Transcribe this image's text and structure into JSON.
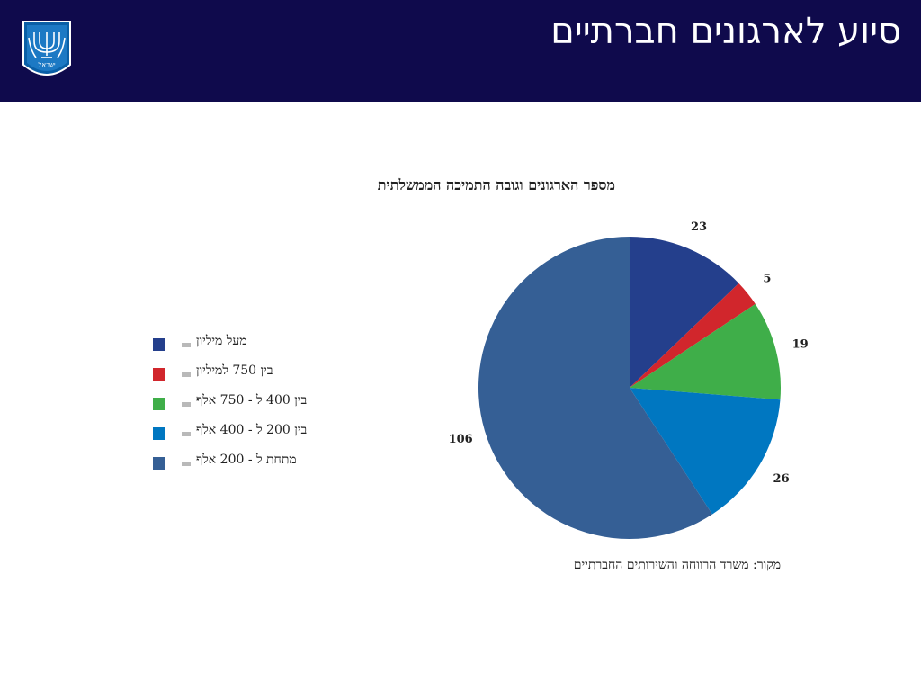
{
  "header": {
    "title": "סיוע לארגונים חברתיים",
    "background_color": "#0f0a4c",
    "emblem_icon": "state-emblem-icon",
    "emblem_text": "ישראל"
  },
  "chart_data": {
    "type": "pie",
    "title": "מספר הארגונים וגובה התמיכה הממשלתית",
    "categories": [
      "מעל מיליון",
      "בין 750 למיליון",
      "בין 400 ל - 750 אלף",
      "בין 200 ל - 400 אלף",
      "מתחת ל - 200 אלף"
    ],
    "values": [
      23,
      5,
      19,
      26,
      106
    ],
    "colors": [
      "#243f8c",
      "#d1262c",
      "#3fae49",
      "#0077c1",
      "#355f95"
    ],
    "legend_position": "left"
  },
  "source": "מקור: משרד הרווחה והשירותים החברתיים"
}
